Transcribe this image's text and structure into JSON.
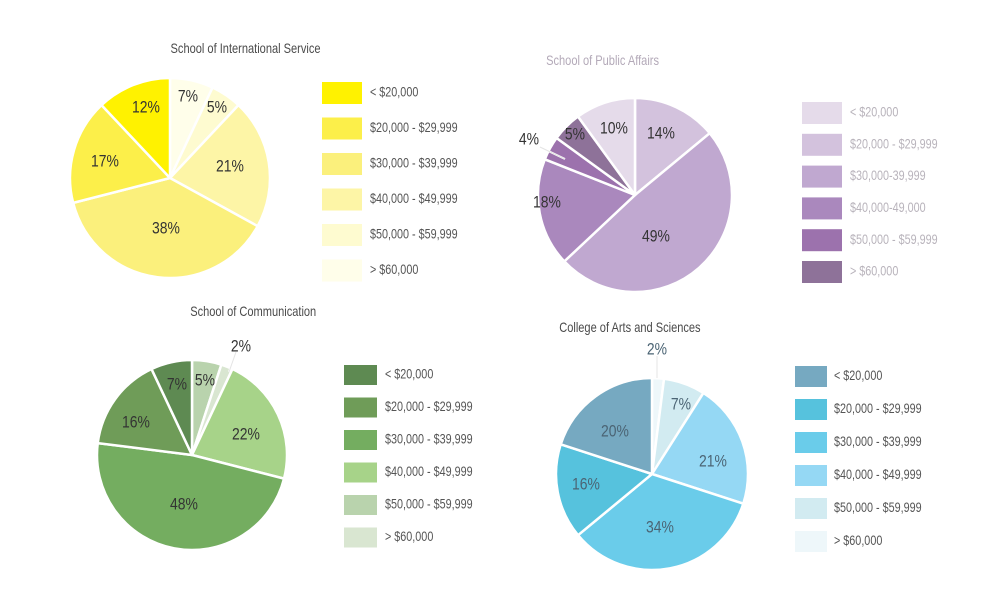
{
  "chart_data": [
    {
      "type": "pie",
      "title": "School of International Service",
      "title_color": "#4a4a4a",
      "label_color": "#333333",
      "legend_text_color": "#555555",
      "legend_placement": "right",
      "categories": [
        "< $20,000",
        "$20,000 - $29,999",
        "$30,000 - $39,999",
        "$40,000 - $49,999",
        "$50,000 - $59,999",
        "> $60,000"
      ],
      "values": [
        12,
        17,
        38,
        21,
        5,
        7
      ],
      "labels": [
        "12%",
        "17%",
        "38%",
        "21%",
        "5%",
        "7%"
      ],
      "colors": [
        "#fff200",
        "#fcef4a",
        "#fbf07c",
        "#fdf5a6",
        "#fefbd0",
        "#fffeea"
      ],
      "slice_order_clockwise_from_top": [
        5,
        4,
        3,
        2,
        1,
        0
      ]
    },
    {
      "type": "pie",
      "title": "School of Public Affairs",
      "title_color": "#b3a9b8",
      "label_color": "#333333",
      "legend_text_color": "#b8b3bb",
      "legend_placement": "right",
      "categories": [
        "< $20,000",
        "$20,000 - $29,999",
        "$30,000-39,999",
        "$40,000-49,000",
        "$50,000 - $59,999",
        "> $60,000"
      ],
      "values": [
        10,
        14,
        49,
        18,
        4,
        5
      ],
      "labels": [
        "10%",
        "14%",
        "49%",
        "18%",
        "4%",
        "5%"
      ],
      "colors": [
        "#e5dbea",
        "#d3c2dd",
        "#c0a8d0",
        "#aa88bd",
        "#9c72ad",
        "#8e7299"
      ],
      "slice_order_clockwise_from_top": [
        1,
        2,
        3,
        4,
        5,
        0
      ]
    },
    {
      "type": "pie",
      "title": "School of Communication",
      "title_color": "#4a4a4a",
      "label_color": "#333333",
      "legend_text_color": "#555555",
      "legend_placement": "right",
      "categories": [
        "< $20,000",
        "$20,000 - $29,999",
        "$30,000 - $39,999",
        "$40,000 - $49,999",
        "$50,000 - $59,999",
        "> $60,000"
      ],
      "values": [
        7,
        16,
        48,
        22,
        5,
        2
      ],
      "labels": [
        "7%",
        "16%",
        "48%",
        "22%",
        "5%",
        "2%"
      ],
      "colors": [
        "#5e8a52",
        "#6f9c58",
        "#74ad60",
        "#a7d389",
        "#b9d3ad",
        "#d9e6d1"
      ],
      "slice_order_clockwise_from_top": [
        4,
        5,
        3,
        2,
        1,
        0
      ]
    },
    {
      "type": "pie",
      "title": "College of Arts and Sciences",
      "title_color": "#4a4a4a",
      "label_color": "#4b6474",
      "legend_text_color": "#555555",
      "legend_placement": "right",
      "categories": [
        "< $20,000",
        "$20,000 - $29,999",
        "$30,000 - $39,999",
        "$40,000 - $49,999",
        "$50,000 - $59,999",
        "> $60,000"
      ],
      "values": [
        20,
        16,
        34,
        21,
        7,
        2
      ],
      "labels": [
        "20%",
        "16%",
        "34%",
        "21%",
        "7%",
        "2%"
      ],
      "colors": [
        "#76a9c1",
        "#56c2dd",
        "#6accea",
        "#95d8f4",
        "#d2ebf1",
        "#eef7fa"
      ],
      "slice_order_clockwise_from_top": [
        5,
        4,
        3,
        2,
        1,
        0
      ]
    }
  ]
}
